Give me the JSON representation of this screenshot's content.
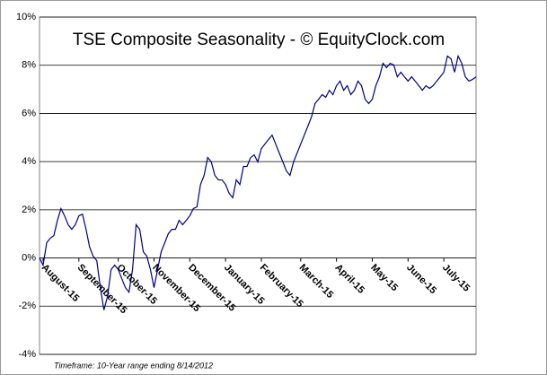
{
  "chart_data": {
    "type": "line",
    "title": "TSE Composite Seasonality - © EquityClock.com",
    "footnote": "Timeframe: 10-Year range ending 8/14/2012",
    "categories": [
      null,
      "August-15",
      null,
      null,
      null,
      null,
      null,
      null,
      null,
      null,
      null,
      "September-15",
      null,
      null,
      null,
      null,
      null,
      null,
      null,
      null,
      null,
      null,
      "October-15",
      null,
      null,
      null,
      null,
      null,
      null,
      null,
      null,
      null,
      "November-15",
      null,
      null,
      null,
      null,
      null,
      null,
      null,
      null,
      null,
      "December-15",
      null,
      null,
      null,
      null,
      null,
      null,
      null,
      null,
      null,
      "January-15",
      null,
      null,
      null,
      null,
      null,
      null,
      null,
      null,
      null,
      "February-15",
      null,
      null,
      null,
      null,
      null,
      null,
      null,
      null,
      null,
      null,
      "March-15",
      null,
      null,
      null,
      null,
      null,
      null,
      null,
      null,
      null,
      "April-15",
      null,
      null,
      null,
      null,
      null,
      null,
      null,
      null,
      null,
      "May-15",
      null,
      null,
      null,
      null,
      null,
      null,
      null,
      null,
      null,
      "June-15",
      null,
      null,
      null,
      null,
      null,
      null,
      null,
      null,
      null,
      "July-15",
      null,
      null,
      null,
      null,
      null,
      null,
      null,
      null,
      null
    ],
    "series": [
      {
        "name": "TSE Composite",
        "color": "#000080",
        "values": [
          0,
          -0.3,
          0.63,
          0.82,
          0.93,
          1.56,
          2.05,
          1.75,
          1.38,
          1.19,
          1.38,
          1.75,
          1.82,
          1.19,
          0.45,
          0.07,
          -0.11,
          -1.23,
          -2.16,
          -1.6,
          -0.48,
          -0.3,
          -0.48,
          -0.86,
          -1.23,
          -1.42,
          -0.48,
          1.38,
          1.19,
          0.26,
          0.07,
          -0.48,
          -1.23,
          -0.48,
          0.26,
          0.63,
          1.01,
          1.19,
          1.19,
          1.56,
          1.38,
          1.56,
          1.75,
          2.05,
          2.12,
          3.05,
          3.43,
          4.17,
          3.99,
          3.43,
          3.24,
          3.24,
          3.05,
          2.68,
          2.5,
          3.24,
          3.05,
          3.8,
          3.8,
          4.17,
          4.28,
          3.99,
          4.54,
          4.73,
          4.92,
          5.1,
          4.73,
          4.36,
          3.99,
          3.61,
          3.43,
          3.99,
          4.36,
          4.73,
          5.1,
          5.47,
          5.85,
          6.41,
          6.59,
          6.78,
          6.67,
          6.96,
          6.78,
          7.15,
          7.34,
          6.96,
          7.15,
          6.78,
          6.96,
          7.34,
          7.15,
          6.59,
          6.41,
          6.59,
          7.15,
          7.52,
          8.08,
          7.9,
          8.08,
          8.01,
          7.52,
          7.71,
          7.52,
          7.34,
          7.52,
          7.34,
          7.15,
          6.96,
          7.15,
          7.04,
          7.15,
          7.34,
          7.52,
          7.71,
          8.38,
          8.27,
          7.71,
          8.38,
          8.08,
          7.52,
          7.34,
          7.41,
          7.52
        ]
      }
    ],
    "ylim": [
      -4,
      10
    ],
    "yticks": [
      {
        "value": -4,
        "label": "-4%"
      },
      {
        "value": -2,
        "label": "-2%"
      },
      {
        "value": 0,
        "label": "0%"
      },
      {
        "value": 2,
        "label": "2%"
      },
      {
        "value": 4,
        "label": "4%"
      },
      {
        "value": 6,
        "label": "6%"
      },
      {
        "value": 8,
        "label": "8%"
      },
      {
        "value": 10,
        "label": "10%"
      }
    ],
    "grid": true
  }
}
